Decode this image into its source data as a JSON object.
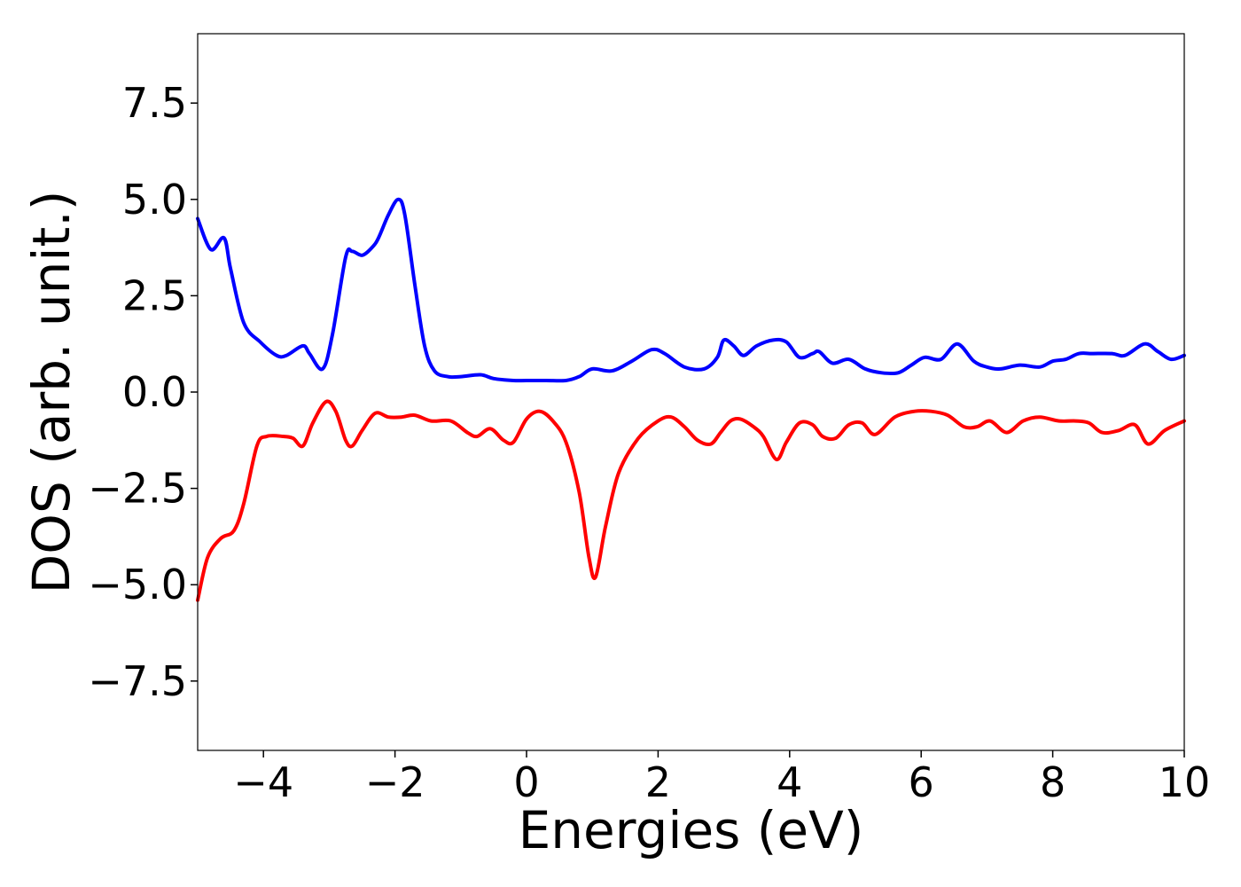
{
  "chart_data": {
    "type": "line",
    "title": "",
    "xlabel": "Energies (eV)",
    "ylabel": "DOS (arb. unit.)",
    "xlim": [
      -5,
      10
    ],
    "ylim": [
      -9.3,
      9.3
    ],
    "grid": false,
    "x_ticks": [
      -4,
      -2,
      0,
      2,
      4,
      6,
      8,
      10
    ],
    "x_tick_labels": [
      "−4",
      "−2",
      "0",
      "2",
      "4",
      "6",
      "8",
      "10"
    ],
    "y_ticks": [
      7.5,
      5.0,
      2.5,
      0.0,
      -2.5,
      -5.0,
      -7.5
    ],
    "y_tick_labels": [
      "7.5",
      "5.0",
      "2.5",
      "0.0",
      "−2.5",
      "−5.0",
      "−7.5"
    ],
    "series": [
      {
        "color": "#0000ff",
        "x": [
          -5.0,
          -4.8,
          -4.6,
          -4.5,
          -4.3,
          -4.05,
          -3.8,
          -3.65,
          -3.4,
          -3.3,
          -3.1,
          -2.95,
          -2.75,
          -2.65,
          -2.5,
          -2.35,
          -2.25,
          -2.1,
          -1.95,
          -1.85,
          -1.7,
          -1.55,
          -1.4,
          -1.2,
          -1.0,
          -0.7,
          -0.5,
          -0.2,
          0.0,
          0.3,
          0.6,
          0.8,
          1.0,
          1.3,
          1.6,
          1.9,
          2.1,
          2.4,
          2.7,
          2.9,
          3.0,
          3.15,
          3.3,
          3.5,
          3.75,
          3.95,
          4.15,
          4.35,
          4.45,
          4.65,
          4.9,
          5.15,
          5.4,
          5.65,
          5.85,
          6.05,
          6.3,
          6.55,
          6.8,
          7.0,
          7.2,
          7.5,
          7.8,
          8.0,
          8.2,
          8.4,
          8.6,
          8.9,
          9.1,
          9.4,
          9.6,
          9.8,
          10.0
        ],
        "y": [
          4.5,
          3.7,
          4.0,
          3.2,
          1.8,
          1.3,
          0.95,
          0.95,
          1.2,
          1.0,
          0.6,
          1.5,
          3.5,
          3.65,
          3.55,
          3.75,
          4.0,
          4.6,
          5.0,
          4.6,
          2.8,
          1.2,
          0.55,
          0.4,
          0.4,
          0.45,
          0.35,
          0.3,
          0.3,
          0.3,
          0.3,
          0.4,
          0.6,
          0.55,
          0.8,
          1.1,
          1.0,
          0.65,
          0.6,
          0.9,
          1.35,
          1.2,
          0.95,
          1.2,
          1.35,
          1.3,
          0.9,
          1.0,
          1.05,
          0.75,
          0.85,
          0.6,
          0.5,
          0.5,
          0.7,
          0.9,
          0.85,
          1.25,
          0.8,
          0.65,
          0.6,
          0.7,
          0.65,
          0.8,
          0.85,
          1.0,
          1.0,
          1.0,
          0.95,
          1.25,
          1.05,
          0.85,
          0.95
        ]
      },
      {
        "color": "#ff0000",
        "x": [
          -5.0,
          -4.85,
          -4.65,
          -4.45,
          -4.3,
          -4.1,
          -3.95,
          -3.7,
          -3.55,
          -3.4,
          -3.25,
          -3.05,
          -2.9,
          -2.75,
          -2.65,
          -2.5,
          -2.3,
          -2.1,
          -1.9,
          -1.7,
          -1.45,
          -1.15,
          -0.9,
          -0.75,
          -0.55,
          -0.35,
          -0.2,
          0.0,
          0.2,
          0.4,
          0.6,
          0.8,
          0.95,
          1.05,
          1.2,
          1.4,
          1.7,
          2.0,
          2.2,
          2.4,
          2.6,
          2.8,
          2.95,
          3.1,
          3.25,
          3.45,
          3.6,
          3.8,
          3.95,
          4.15,
          4.35,
          4.5,
          4.7,
          4.9,
          5.1,
          5.3,
          5.6,
          5.9,
          6.15,
          6.4,
          6.65,
          6.85,
          7.05,
          7.3,
          7.55,
          7.8,
          8.1,
          8.35,
          8.55,
          8.75,
          9.0,
          9.25,
          9.45,
          9.7,
          10.0
        ],
        "y": [
          -5.4,
          -4.3,
          -3.8,
          -3.6,
          -2.9,
          -1.4,
          -1.15,
          -1.15,
          -1.2,
          -1.4,
          -0.8,
          -0.25,
          -0.5,
          -1.25,
          -1.4,
          -1.0,
          -0.55,
          -0.65,
          -0.65,
          -0.6,
          -0.75,
          -0.75,
          -1.05,
          -1.15,
          -0.95,
          -1.25,
          -1.3,
          -0.7,
          -0.5,
          -0.75,
          -1.3,
          -2.6,
          -4.3,
          -4.8,
          -3.5,
          -2.1,
          -1.2,
          -0.75,
          -0.65,
          -0.9,
          -1.25,
          -1.35,
          -1.05,
          -0.75,
          -0.7,
          -0.9,
          -1.15,
          -1.75,
          -1.3,
          -0.8,
          -0.85,
          -1.15,
          -1.2,
          -0.85,
          -0.8,
          -1.1,
          -0.65,
          -0.5,
          -0.5,
          -0.6,
          -0.9,
          -0.9,
          -0.75,
          -1.05,
          -0.75,
          -0.65,
          -0.75,
          -0.75,
          -0.8,
          -1.05,
          -1.0,
          -0.85,
          -1.35,
          -1.0,
          -0.75
        ]
      }
    ]
  }
}
